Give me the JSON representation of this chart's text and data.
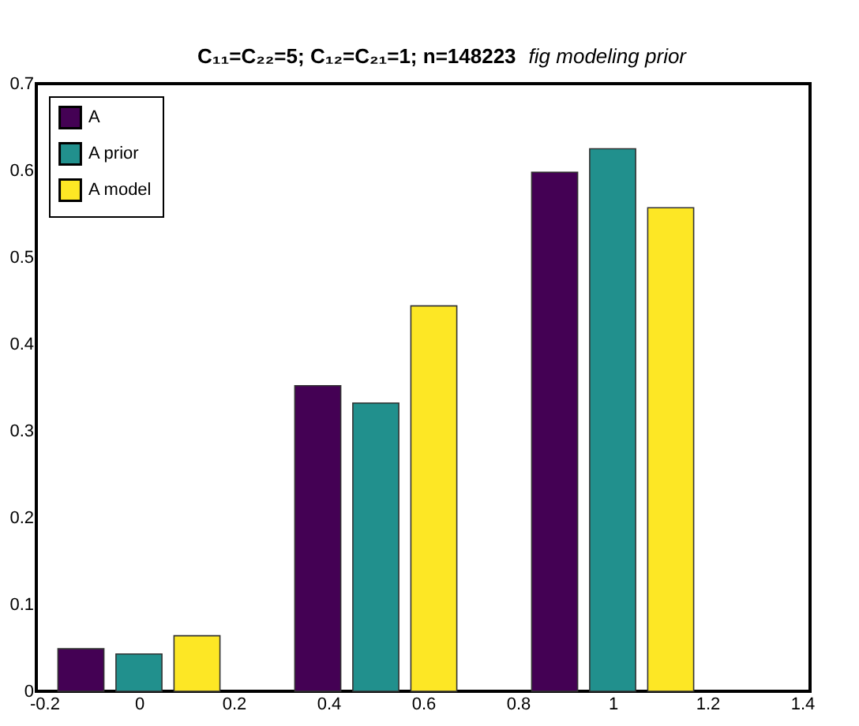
{
  "chart_data": {
    "type": "bar",
    "title": "C₁₁=C₂₂=5; C₁₂=C₂₁=1; n=148223",
    "subtitle": "fig modeling prior",
    "x": [
      0,
      0.5,
      1
    ],
    "series": [
      {
        "name": "A",
        "color": "#440154",
        "values": [
          0.049,
          0.352,
          0.598
        ]
      },
      {
        "name": "A prior",
        "color": "#21908d",
        "values": [
          0.043,
          0.332,
          0.625
        ]
      },
      {
        "name": "A model",
        "color": "#fde725",
        "values": [
          0.064,
          0.444,
          0.557
        ]
      }
    ],
    "xlim": [
      -0.2,
      1.4
    ],
    "xticks": [
      -0.2,
      0,
      0.2,
      0.4,
      0.6,
      0.8,
      1,
      1.2,
      1.4
    ],
    "ylim": [
      0,
      0.7
    ],
    "yticks": [
      0,
      0.1,
      0.2,
      0.3,
      0.4,
      0.5,
      0.6,
      0.7
    ],
    "grid": false,
    "legend": "top left"
  }
}
